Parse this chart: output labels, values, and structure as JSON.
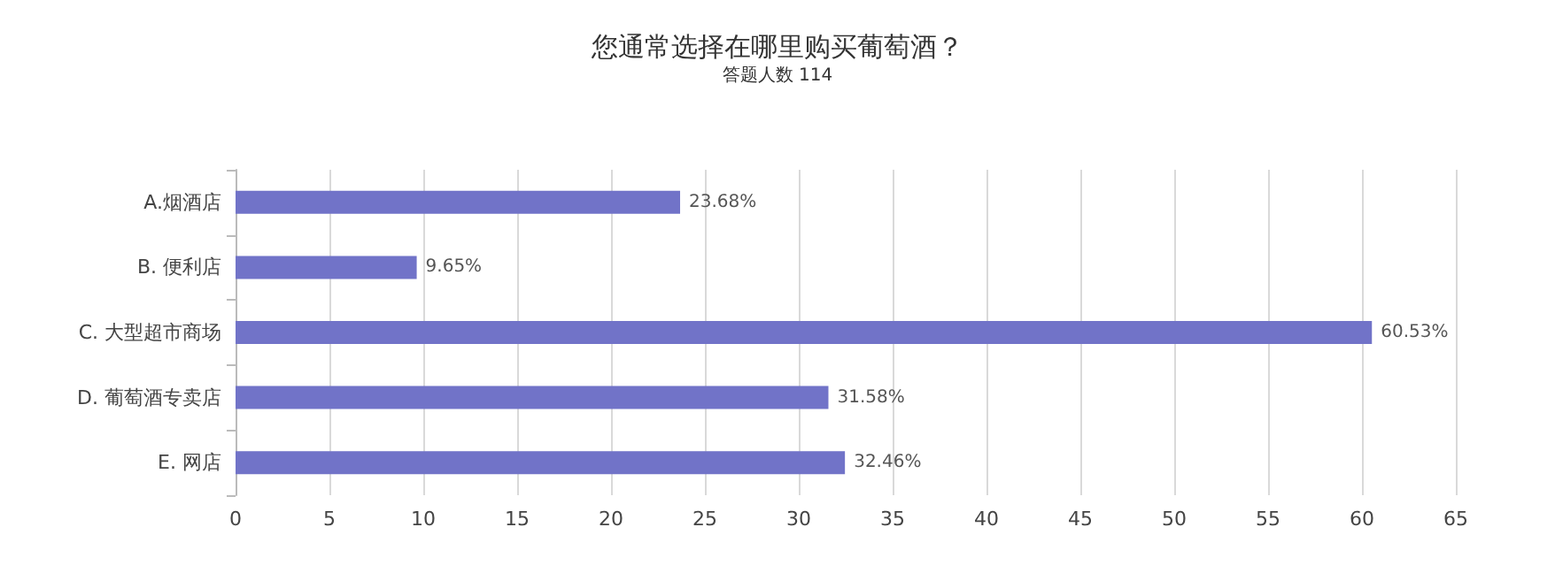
{
  "chart_data": {
    "type": "bar",
    "orientation": "horizontal",
    "title": "您通常选择在哪里购买葡萄酒？",
    "subtitle": "答题人数 114",
    "categories": [
      "A.烟酒店",
      "B. 便利店",
      "C. 大型超市商场",
      "D. 葡萄酒专卖店",
      "E. 网店"
    ],
    "values": [
      23.68,
      9.65,
      60.53,
      31.58,
      32.46
    ],
    "value_labels": [
      "23.68%",
      "9.65%",
      "60.53%",
      "31.58%",
      "32.46%"
    ],
    "color": "#7173c8",
    "xlim": [
      0,
      65
    ],
    "xticks": [
      0,
      5,
      10,
      15,
      20,
      25,
      30,
      35,
      40,
      45,
      50,
      55,
      60,
      65
    ],
    "grid": "x"
  }
}
